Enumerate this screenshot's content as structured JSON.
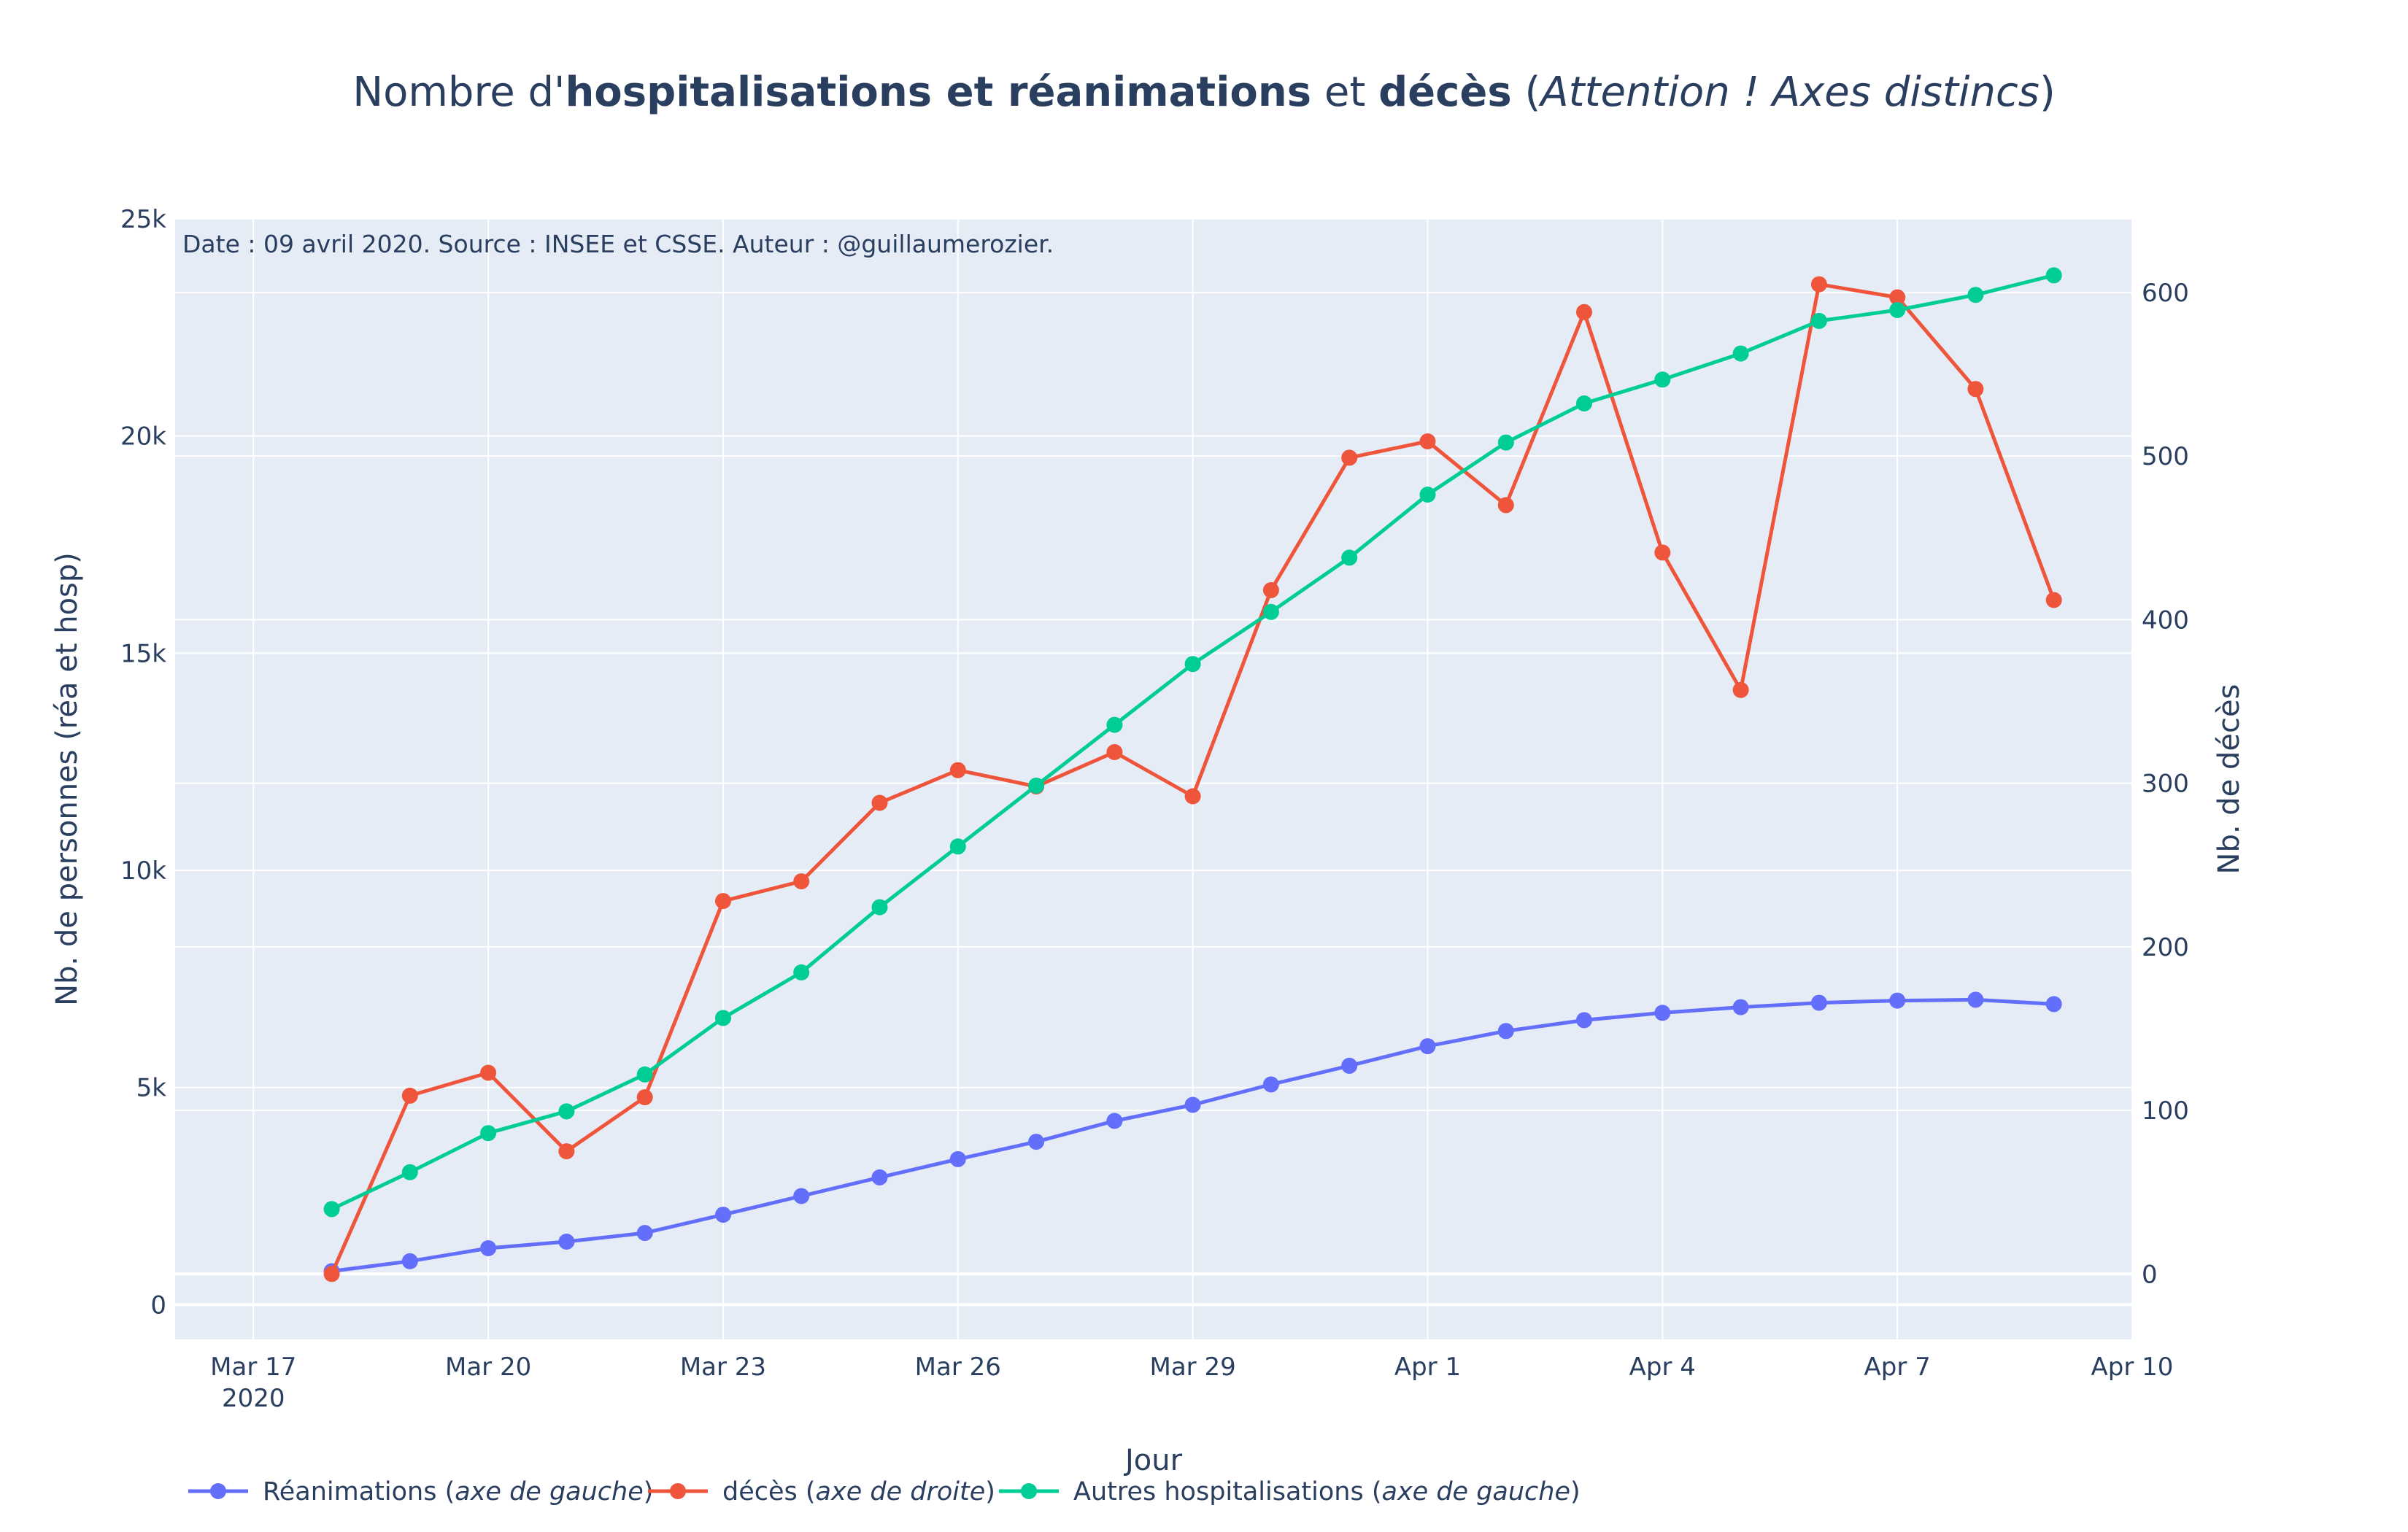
{
  "title": {
    "prefix": "Nombre d'",
    "bold1": "hospitalisations et réanimations",
    "mid": " et ",
    "bold2": "décès",
    "open": " (",
    "italic": "Attention ! Axes distincs",
    "close": ")"
  },
  "annotation": "Date : 09 avril 2020. Source : INSEE et CSSE. Auteur : @guillaumerozier.",
  "colors": {
    "plot_bg": "#e5ecf6",
    "grid": "#ffffff",
    "text": "#2a3f5f",
    "reanimations": "#636efa",
    "deces": "#ef553b",
    "hospitalisations": "#00cc96"
  },
  "legend": [
    {
      "key": "reanimations",
      "label": "Réanimations (",
      "italic": "axe de gauche",
      "end": ")"
    },
    {
      "key": "deces",
      "label": "décès (",
      "italic": "axe de droite",
      "end": ")"
    },
    {
      "key": "hospitalisations",
      "label": "Autres hospitalisations (",
      "italic": "axe de gauche",
      "end": ")"
    }
  ],
  "chart_data": {
    "type": "line",
    "xlabel": "Jour",
    "ylabel_left": "Nb. de personnes (réa et hosp)",
    "ylabel_right": "Nb. de décès",
    "x_range": [
      "2020-03-16",
      "2020-04-10"
    ],
    "y_left_range": [
      -800,
      25000
    ],
    "y_right_range": [
      -40,
      645
    ],
    "x_ticks": [
      {
        "date": "2020-03-17",
        "label": "Mar 17",
        "sublabel": "2020"
      },
      {
        "date": "2020-03-20",
        "label": "Mar 20"
      },
      {
        "date": "2020-03-23",
        "label": "Mar 23"
      },
      {
        "date": "2020-03-26",
        "label": "Mar 26"
      },
      {
        "date": "2020-03-29",
        "label": "Mar 29"
      },
      {
        "date": "2020-04-01",
        "label": "Apr 1"
      },
      {
        "date": "2020-04-04",
        "label": "Apr 4"
      },
      {
        "date": "2020-04-07",
        "label": "Apr 7"
      },
      {
        "date": "2020-04-10",
        "label": "Apr 10"
      }
    ],
    "y_left_ticks": [
      {
        "value": 0,
        "label": "0"
      },
      {
        "value": 5000,
        "label": "5k"
      },
      {
        "value": 10000,
        "label": "10k"
      },
      {
        "value": 15000,
        "label": "15k"
      },
      {
        "value": 20000,
        "label": "20k"
      },
      {
        "value": 25000,
        "label": "25k"
      }
    ],
    "y_right_ticks": [
      {
        "value": 0,
        "label": "0"
      },
      {
        "value": 100,
        "label": "100"
      },
      {
        "value": 200,
        "label": "200"
      },
      {
        "value": 300,
        "label": "300"
      },
      {
        "value": 400,
        "label": "400"
      },
      {
        "value": 500,
        "label": "500"
      },
      {
        "value": 600,
        "label": "600"
      }
    ],
    "x": [
      "2020-03-18",
      "2020-03-19",
      "2020-03-20",
      "2020-03-21",
      "2020-03-22",
      "2020-03-23",
      "2020-03-24",
      "2020-03-25",
      "2020-03-26",
      "2020-03-27",
      "2020-03-28",
      "2020-03-29",
      "2020-03-30",
      "2020-03-31",
      "2020-04-01",
      "2020-04-02",
      "2020-04-03",
      "2020-04-04",
      "2020-04-05",
      "2020-04-06",
      "2020-04-07",
      "2020-04-08",
      "2020-04-09"
    ],
    "series": [
      {
        "key": "reanimations",
        "axis": "left",
        "values": [
          770,
          1000,
          1300,
          1450,
          1650,
          2070,
          2500,
          2930,
          3350,
          3750,
          4230,
          4600,
          5070,
          5500,
          5950,
          6300,
          6550,
          6720,
          6850,
          6950,
          7000,
          7020,
          6920
        ]
      },
      {
        "key": "deces",
        "axis": "right",
        "values": [
          0,
          109,
          123,
          75,
          108,
          228,
          240,
          288,
          308,
          298,
          319,
          292,
          418,
          499,
          509,
          470,
          588,
          441,
          357,
          605,
          597,
          541,
          412
        ]
      },
      {
        "key": "hospitalisations",
        "axis": "left",
        "values": [
          2200,
          3050,
          3950,
          4450,
          5300,
          6600,
          7650,
          9150,
          10550,
          11950,
          13350,
          14750,
          15950,
          17200,
          18650,
          19850,
          20750,
          21300,
          21900,
          22650,
          22900,
          23250,
          23700
        ]
      }
    ]
  }
}
